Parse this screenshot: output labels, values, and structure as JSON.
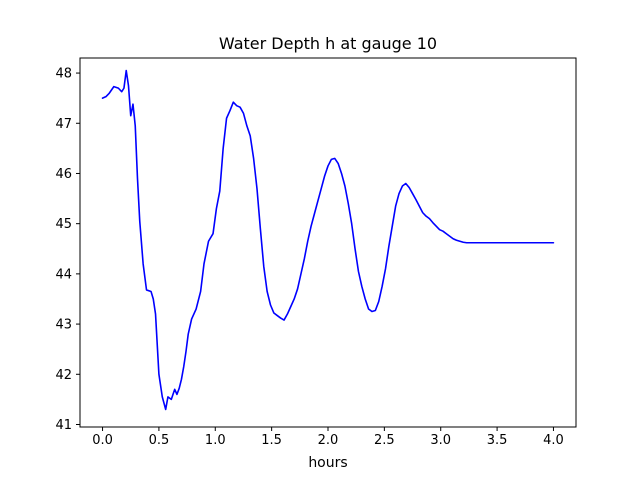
{
  "chart_data": {
    "type": "line",
    "title": "Water Depth h at gauge 10",
    "xlabel": "hours",
    "ylabel": "",
    "xlim": [
      -0.2,
      4.2
    ],
    "ylim": [
      40.95,
      48.3
    ],
    "xticks": [
      0.0,
      0.5,
      1.0,
      1.5,
      2.0,
      2.5,
      3.0,
      3.5,
      4.0
    ],
    "xtick_labels": [
      "0.0",
      "0.5",
      "1.0",
      "1.5",
      "2.0",
      "2.5",
      "3.0",
      "3.5",
      "4.0"
    ],
    "yticks": [
      41,
      42,
      43,
      44,
      45,
      46,
      47,
      48
    ],
    "ytick_labels": [
      "41",
      "42",
      "43",
      "44",
      "45",
      "46",
      "47",
      "48"
    ],
    "grid": false,
    "series": [
      {
        "color": "#0000ff",
        "x": [
          0.0,
          0.03,
          0.06,
          0.1,
          0.14,
          0.17,
          0.19,
          0.21,
          0.23,
          0.25,
          0.27,
          0.29,
          0.31,
          0.33,
          0.36,
          0.39,
          0.43,
          0.45,
          0.47,
          0.5,
          0.53,
          0.56,
          0.58,
          0.61,
          0.64,
          0.66,
          0.68,
          0.7,
          0.72,
          0.74,
          0.76,
          0.79,
          0.83,
          0.87,
          0.9,
          0.94,
          0.98,
          1.01,
          1.04,
          1.07,
          1.1,
          1.13,
          1.16,
          1.19,
          1.22,
          1.25,
          1.28,
          1.31,
          1.34,
          1.37,
          1.4,
          1.43,
          1.46,
          1.49,
          1.52,
          1.55,
          1.58,
          1.61,
          1.64,
          1.67,
          1.7,
          1.73,
          1.76,
          1.79,
          1.82,
          1.85,
          1.88,
          1.91,
          1.94,
          1.97,
          2.0,
          2.03,
          2.06,
          2.09,
          2.12,
          2.15,
          2.18,
          2.21,
          2.24,
          2.27,
          2.3,
          2.33,
          2.36,
          2.39,
          2.42,
          2.45,
          2.48,
          2.51,
          2.54,
          2.57,
          2.6,
          2.63,
          2.66,
          2.69,
          2.72,
          2.75,
          2.78,
          2.81,
          2.84,
          2.87,
          2.9,
          2.93,
          2.96,
          2.99,
          3.02,
          3.05,
          3.08,
          3.11,
          3.14,
          3.17,
          3.2,
          3.23,
          3.26,
          3.29,
          3.32,
          3.35,
          3.38,
          3.41,
          3.44,
          3.47,
          3.5,
          3.53,
          3.56,
          3.59,
          3.62,
          3.65,
          3.68,
          3.71,
          3.74,
          3.77,
          3.8,
          3.83,
          3.86,
          3.89,
          3.92,
          3.95,
          3.98,
          4.0
        ],
        "y": [
          47.5,
          47.53,
          47.6,
          47.73,
          47.7,
          47.63,
          47.7,
          48.05,
          47.75,
          47.15,
          47.38,
          46.95,
          45.9,
          45.05,
          44.2,
          43.68,
          43.65,
          43.5,
          43.2,
          42.0,
          41.55,
          41.3,
          41.55,
          41.5,
          41.7,
          41.6,
          41.72,
          41.9,
          42.15,
          42.45,
          42.8,
          43.1,
          43.3,
          43.65,
          44.2,
          44.65,
          44.8,
          45.3,
          45.65,
          46.5,
          47.1,
          47.25,
          47.42,
          47.35,
          47.32,
          47.2,
          46.95,
          46.75,
          46.3,
          45.7,
          44.9,
          44.15,
          43.65,
          43.38,
          43.22,
          43.17,
          43.12,
          43.08,
          43.2,
          43.35,
          43.5,
          43.7,
          44.0,
          44.3,
          44.65,
          44.95,
          45.2,
          45.45,
          45.7,
          45.95,
          46.15,
          46.28,
          46.3,
          46.2,
          46.0,
          45.75,
          45.4,
          45.0,
          44.5,
          44.05,
          43.75,
          43.5,
          43.3,
          43.25,
          43.27,
          43.45,
          43.75,
          44.1,
          44.55,
          44.95,
          45.35,
          45.6,
          45.75,
          45.8,
          45.72,
          45.6,
          45.48,
          45.35,
          45.22,
          45.15,
          45.1,
          45.02,
          44.95,
          44.88,
          44.85,
          44.8,
          44.75,
          44.7,
          44.67,
          44.65,
          44.63,
          44.62,
          44.62,
          44.62,
          44.62,
          44.62,
          44.62,
          44.62,
          44.62,
          44.62,
          44.62,
          44.62,
          44.62,
          44.62,
          44.62,
          44.62,
          44.62,
          44.62,
          44.62,
          44.62,
          44.62,
          44.62,
          44.62,
          44.62,
          44.62,
          44.62,
          44.62,
          44.62
        ]
      }
    ]
  }
}
